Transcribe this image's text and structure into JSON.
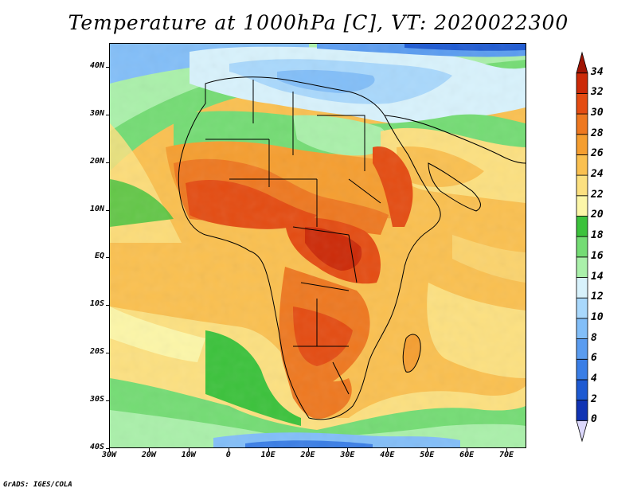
{
  "title": "Temperature at 1000hPa [C], VT: 2020022300",
  "credit": "GrADS: IGES/COLA",
  "map": {
    "variable": "Temperature at 1000hPa",
    "units": "C",
    "valid_time": "2020022300",
    "lon_range": [
      -30,
      75
    ],
    "lat_range": [
      -40,
      45
    ],
    "lat_ticks": [
      {
        "value": 40,
        "label": "40N"
      },
      {
        "value": 30,
        "label": "30N"
      },
      {
        "value": 20,
        "label": "20N"
      },
      {
        "value": 10,
        "label": "10N"
      },
      {
        "value": 0,
        "label": "EQ"
      },
      {
        "value": -10,
        "label": "10S"
      },
      {
        "value": -20,
        "label": "20S"
      },
      {
        "value": -30,
        "label": "30S"
      },
      {
        "value": -40,
        "label": "40S"
      }
    ],
    "lon_ticks": [
      {
        "value": -30,
        "label": "30W"
      },
      {
        "value": -20,
        "label": "20W"
      },
      {
        "value": -10,
        "label": "10W"
      },
      {
        "value": 0,
        "label": "0"
      },
      {
        "value": 10,
        "label": "10E"
      },
      {
        "value": 20,
        "label": "20E"
      },
      {
        "value": 30,
        "label": "30E"
      },
      {
        "value": 40,
        "label": "40E"
      },
      {
        "value": 50,
        "label": "50E"
      },
      {
        "value": 60,
        "label": "60E"
      },
      {
        "value": 70,
        "label": "70E"
      }
    ]
  },
  "colorbar": {
    "levels": [
      0,
      2,
      4,
      6,
      8,
      10,
      12,
      14,
      16,
      18,
      20,
      22,
      24,
      26,
      28,
      30,
      32,
      34
    ],
    "labels": [
      "34",
      "32",
      "30",
      "28",
      "26",
      "24",
      "22",
      "20",
      "18",
      "16",
      "14",
      "12",
      "10",
      "8",
      "6",
      "4",
      "2",
      "0"
    ],
    "colors": [
      "#0a1a78",
      "#1033b4",
      "#1e5ad2",
      "#3a7ee6",
      "#5a9cf0",
      "#82bef8",
      "#a9d8fc",
      "#d8f2fc",
      "#aaf0aa",
      "#74dc74",
      "#3cc23c",
      "#fcf6a8",
      "#fce080",
      "#fac050",
      "#f59e30",
      "#ee7820",
      "#e44c12",
      "#cc2a08",
      "#a01404"
    ]
  }
}
